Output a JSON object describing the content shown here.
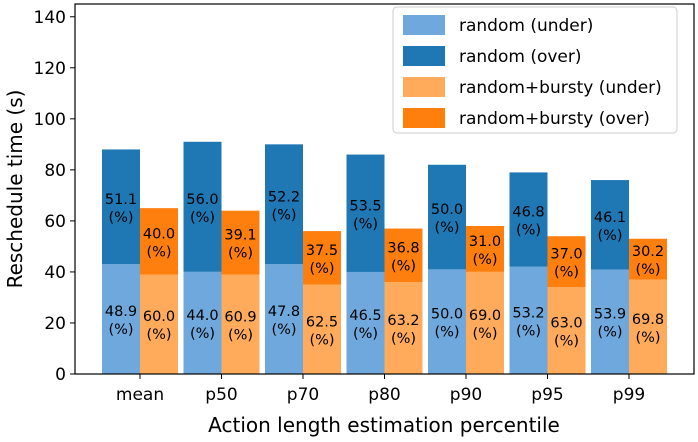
{
  "chart_data": {
    "type": "bar",
    "xlabel": "Action length estimation percentile",
    "ylabel": "Reschedule time (s)",
    "ylim": [
      0,
      145
    ],
    "yticks": [
      0,
      20,
      40,
      60,
      80,
      100,
      120,
      140
    ],
    "categories": [
      "mean",
      "p50",
      "p70",
      "p80",
      "p90",
      "p95",
      "p99"
    ],
    "groups": [
      {
        "name": "random",
        "totals": [
          88,
          91,
          90,
          86,
          82,
          79,
          76
        ],
        "under_pct": [
          "48.9",
          "44.0",
          "47.8",
          "46.5",
          "50.0",
          "53.2",
          "53.9"
        ],
        "over_pct": [
          "51.1",
          "56.0",
          "52.2",
          "53.5",
          "50.0",
          "46.8",
          "46.1"
        ]
      },
      {
        "name": "random+bursty",
        "totals": [
          65,
          64,
          56,
          57,
          58,
          54,
          53
        ],
        "under_pct": [
          "60.0",
          "60.9",
          "62.5",
          "63.2",
          "69.0",
          "63.0",
          "69.8"
        ],
        "over_pct": [
          "40.0",
          "39.1",
          "37.5",
          "36.8",
          "31.0",
          "37.0",
          "30.2"
        ]
      }
    ],
    "pct_suffix": "(%)",
    "legend": [
      {
        "label": "random (under)",
        "color": "#6fa8dc"
      },
      {
        "label": "random (over)",
        "color": "#1f77b4"
      },
      {
        "label": "random+bursty (under)",
        "color": "#ffab5b"
      },
      {
        "label": "random+bursty (over)",
        "color": "#ff7f0e"
      }
    ],
    "legend_position": "top-right",
    "colors": {
      "random_under": "#6fa8dc",
      "random_over": "#1f77b4",
      "bursty_under": "#ffab5b",
      "bursty_over": "#ff7f0e"
    }
  }
}
